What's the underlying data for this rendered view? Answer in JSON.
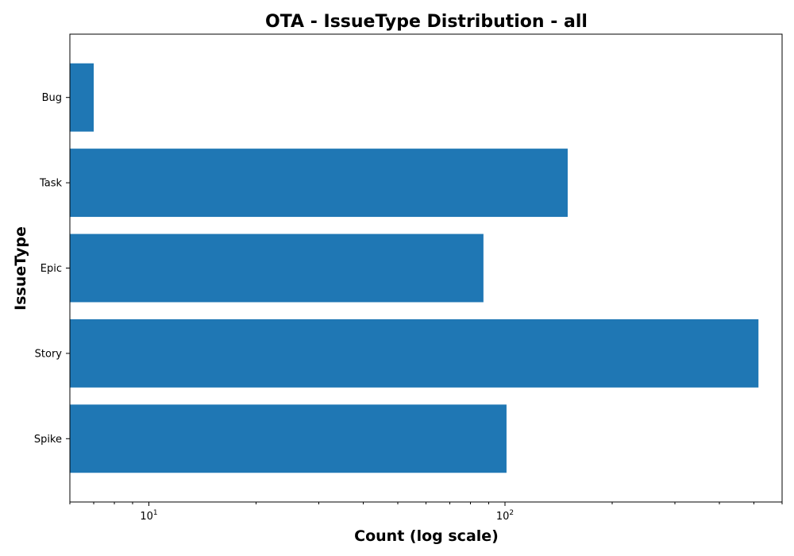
{
  "chart_data": {
    "type": "bar",
    "orientation": "horizontal",
    "title": "OTA - IssueType Distribution - all",
    "xlabel": "Count (log scale)",
    "ylabel": "IssueType",
    "x_scale": "log",
    "xlim": [
      6,
      600
    ],
    "x_major_ticks": [
      {
        "value": 10,
        "base": "10",
        "exp": "1"
      },
      {
        "value": 100,
        "base": "10",
        "exp": "2"
      }
    ],
    "categories": [
      "Bug",
      "Task",
      "Epic",
      "Story",
      "Spike"
    ],
    "values": [
      7,
      150,
      87,
      515,
      101
    ],
    "bar_color": "#1f77b4",
    "grid": false,
    "legend": "none"
  }
}
